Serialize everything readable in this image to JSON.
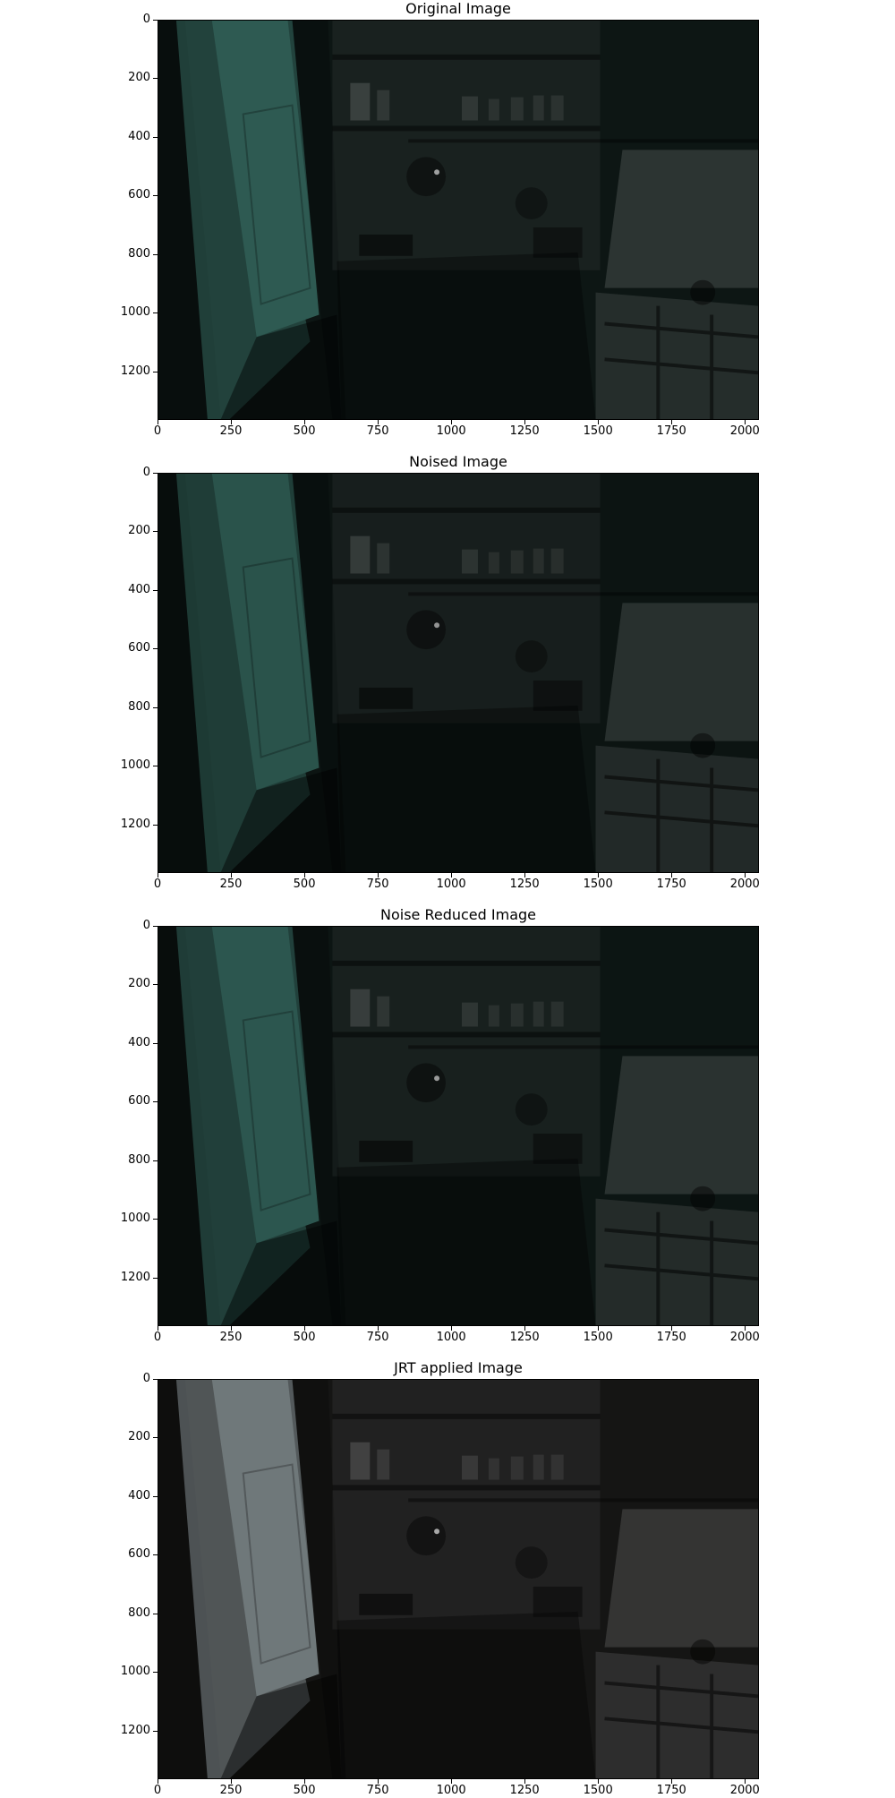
{
  "figure": {
    "panels": [
      {
        "id": "original",
        "title": "Original Image",
        "tone": "teal",
        "brightness": 1.0
      },
      {
        "id": "noised",
        "title": "Noised Image",
        "tone": "teal",
        "brightness": 0.92
      },
      {
        "id": "reduced",
        "title": "Noise Reduced Image",
        "tone": "teal",
        "brightness": 0.96
      },
      {
        "id": "jrt",
        "title": "JRT applied Image",
        "tone": "neutral",
        "brightness": 1.05
      }
    ],
    "x_ticks": [
      "0",
      "250",
      "500",
      "750",
      "1000",
      "1250",
      "1500",
      "1750",
      "2000"
    ],
    "y_ticks": [
      "0",
      "200",
      "400",
      "600",
      "800",
      "1000",
      "1200"
    ],
    "x_range": [
      0,
      2048
    ],
    "y_range": [
      0,
      1365
    ]
  },
  "colors": {
    "teal_door": "#2e5a52",
    "teal_bg": "#0d1614",
    "neutral_door": "#6a7274",
    "neutral_bg": "#141413"
  }
}
